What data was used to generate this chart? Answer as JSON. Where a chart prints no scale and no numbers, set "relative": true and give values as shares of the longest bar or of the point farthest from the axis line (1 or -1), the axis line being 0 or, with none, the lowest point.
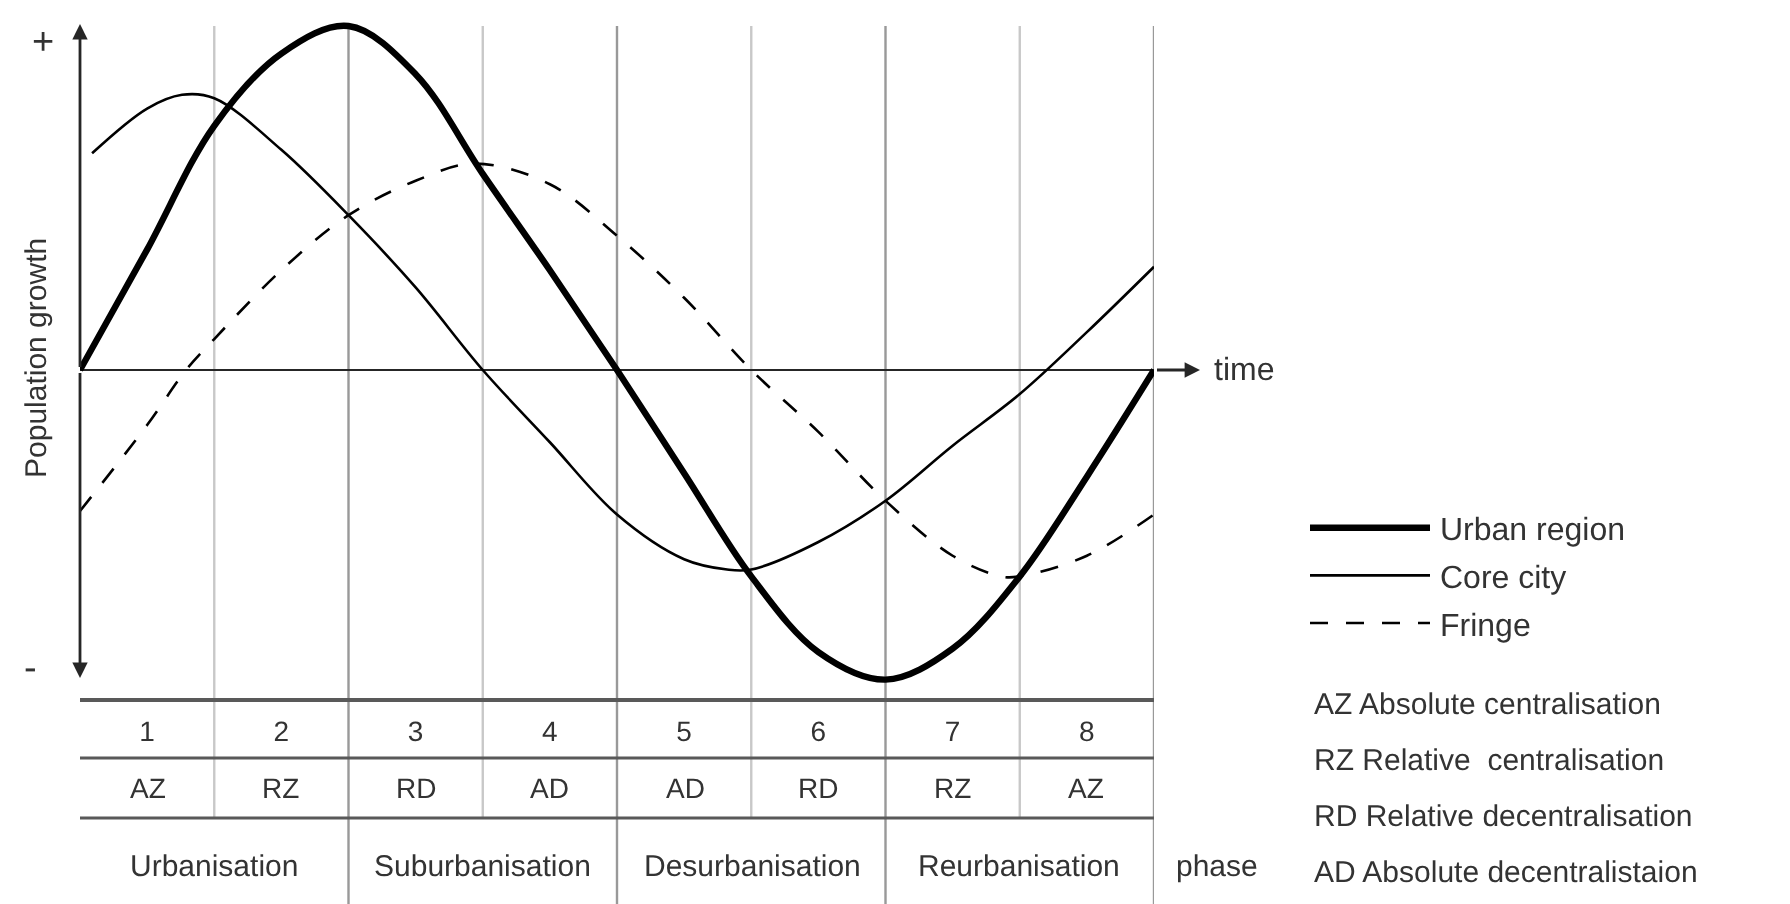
{
  "chart_data": {
    "type": "line",
    "relative": true,
    "line_style": "solid",
    "legend": "right",
    "xlabel": "time",
    "ylabel": "Population growth",
    "xlim": [
      0.5,
      8.5
    ],
    "xticks": [
      1,
      2,
      3,
      4,
      5,
      6,
      7,
      8
    ],
    "series": [
      {
        "name": "Urban region",
        "color": "#000000",
        "x": [
          0.5,
          1.0,
          1.5,
          2.0,
          2.5,
          3.0,
          3.5,
          4.0,
          4.5,
          5.0,
          5.5,
          6.0,
          6.5,
          7.0,
          7.5,
          8.0,
          8.5
        ],
        "values": [
          0,
          0.35,
          0.71,
          0.92,
          1.0,
          0.86,
          0.57,
          0.29,
          0,
          -0.3,
          -0.6,
          -0.82,
          -0.9,
          -0.81,
          -0.6,
          -0.31,
          0
        ]
      },
      {
        "name": "Core city",
        "color": "#000000",
        "x": [
          0.59,
          1.0,
          1.26,
          1.5,
          2.0,
          2.5,
          3.0,
          3.5,
          4.0,
          4.5,
          5.0,
          5.32,
          5.5,
          6.0,
          6.5,
          7.0,
          7.5,
          8.0,
          8.5
        ],
        "values": [
          0.63,
          0.76,
          0.8,
          0.79,
          0.64,
          0.45,
          0.24,
          0,
          -0.21,
          -0.42,
          -0.55,
          -0.58,
          -0.58,
          -0.5,
          -0.38,
          -0.22,
          -0.07,
          0.11,
          0.3
        ]
      },
      {
        "name": "Fringe",
        "color": "#000000",
        "line_style": "dashed",
        "x": [
          0.5,
          1.0,
          1.29,
          1.5,
          2.0,
          2.5,
          3.0,
          3.44,
          4.0,
          4.5,
          5.0,
          5.5,
          6.0,
          6.5,
          7.0,
          7.36,
          7.5,
          8.0,
          8.5
        ],
        "values": [
          -0.41,
          -0.16,
          0,
          0.09,
          0.29,
          0.45,
          0.55,
          0.6,
          0.54,
          0.39,
          0.21,
          0,
          -0.18,
          -0.38,
          -0.54,
          -0.6,
          -0.6,
          -0.54,
          -0.42
        ]
      }
    ],
    "ref_lines": [
      {
        "axis": "x",
        "value": 1.5,
        "color": "#c8c8c8"
      },
      {
        "axis": "x",
        "value": 2.5,
        "color": "#999999"
      },
      {
        "axis": "x",
        "value": 3.5,
        "color": "#c8c8c8"
      },
      {
        "axis": "x",
        "value": 4.5,
        "color": "#999999"
      },
      {
        "axis": "x",
        "value": 5.5,
        "color": "#c8c8c8"
      },
      {
        "axis": "x",
        "value": 6.5,
        "color": "#999999"
      },
      {
        "axis": "x",
        "value": 7.5,
        "color": "#c8c8c8"
      },
      {
        "axis": "x",
        "value": 8.5,
        "color": "#999999"
      }
    ],
    "annotations": [
      "+",
      "-",
      "AZ",
      "RZ",
      "RD",
      "AD",
      "AD",
      "RD",
      "RZ",
      "AZ",
      "Urbanisation",
      "Suburbanisation",
      "Desurbanisation",
      "Reurbanisation",
      "phase",
      "AZ Absolute centralisation",
      "RZ Relative  centralisation",
      "RD Relative decentralisation",
      "AD Absolute decentralistaion"
    ]
  }
}
